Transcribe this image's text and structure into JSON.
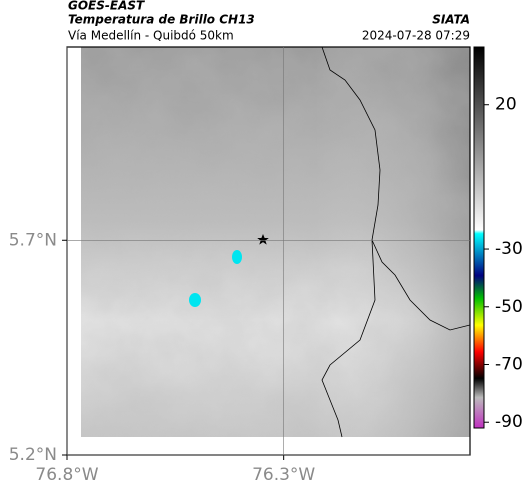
{
  "header": {
    "line1": "GOES-EAST",
    "title": "Temperatura de Brillo CH13",
    "subtitle": "Vía Medellín - Quibdó 50km",
    "source": "SIATA",
    "datetime": "2024-07-28 07:29"
  },
  "map": {
    "xlim": [
      -76.8,
      -75.87
    ],
    "ylim": [
      5.2,
      6.15
    ],
    "xticks": [
      {
        "value": -76.8,
        "label": "76.8°W"
      },
      {
        "value": -76.3,
        "label": "76.3°W"
      }
    ],
    "yticks": [
      {
        "value": 5.7,
        "label": "5.7°N"
      },
      {
        "value": 5.2,
        "label": "5.2°N"
      }
    ],
    "grid": true
  },
  "colorbar": {
    "lim": [
      40,
      -92
    ],
    "ticks": [
      20,
      -30,
      -50,
      -70,
      -90
    ]
  }
}
